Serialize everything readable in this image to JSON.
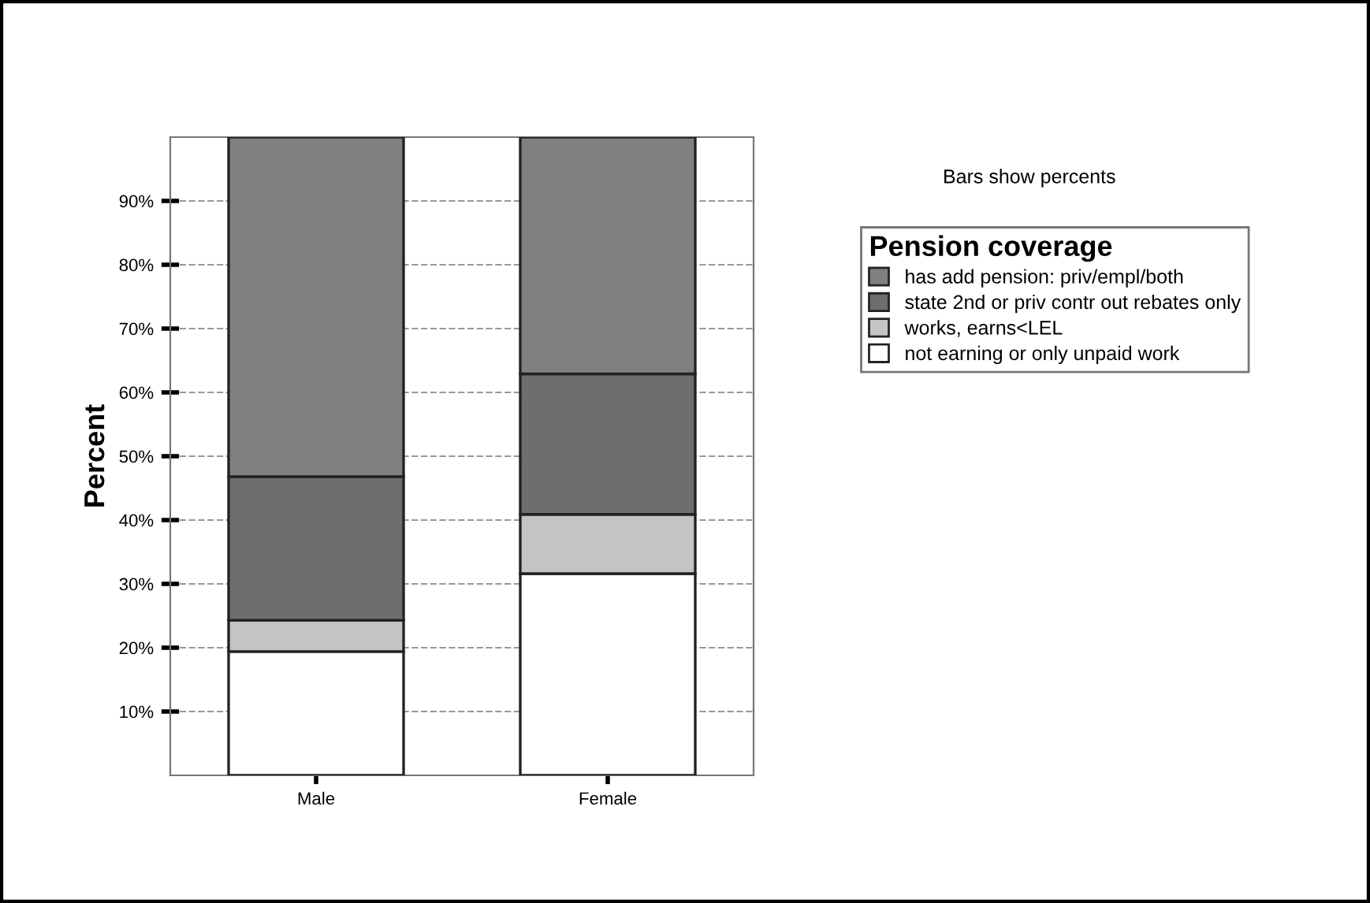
{
  "chart_data": {
    "type": "bar",
    "stacked": true,
    "ylabel": "Percent",
    "legend_title": "Pension coverage",
    "categories": [
      "Male",
      "Female"
    ],
    "series": [
      {
        "name": "not earning or only unpaid work",
        "color": "#ffffff",
        "values": [
          19.4,
          31.6
        ]
      },
      {
        "name": "works, earns<LEL",
        "color": "#c4c4c4",
        "values": [
          4.9,
          9.3
        ]
      },
      {
        "name": "state 2nd or priv contr out rebates only",
        "color": "#6e6e6e",
        "values": [
          22.5,
          22.0
        ]
      },
      {
        "name": "has add pension: priv/empl/both",
        "color": "#808080",
        "values": [
          53.2,
          37.1
        ]
      }
    ],
    "ylim": [
      0,
      100
    ],
    "yticks": [
      {
        "value": 10,
        "label": "10%"
      },
      {
        "value": 20,
        "label": "20%"
      },
      {
        "value": 30,
        "label": "30%"
      },
      {
        "value": 40,
        "label": "40%"
      },
      {
        "value": 50,
        "label": "50%"
      },
      {
        "value": 60,
        "label": "60%"
      },
      {
        "value": 70,
        "label": "70%"
      },
      {
        "value": 80,
        "label": "80%"
      },
      {
        "value": 90,
        "label": "90%"
      }
    ],
    "grid": "y",
    "legend": "right",
    "annotations": [
      "Bars show percents"
    ]
  }
}
